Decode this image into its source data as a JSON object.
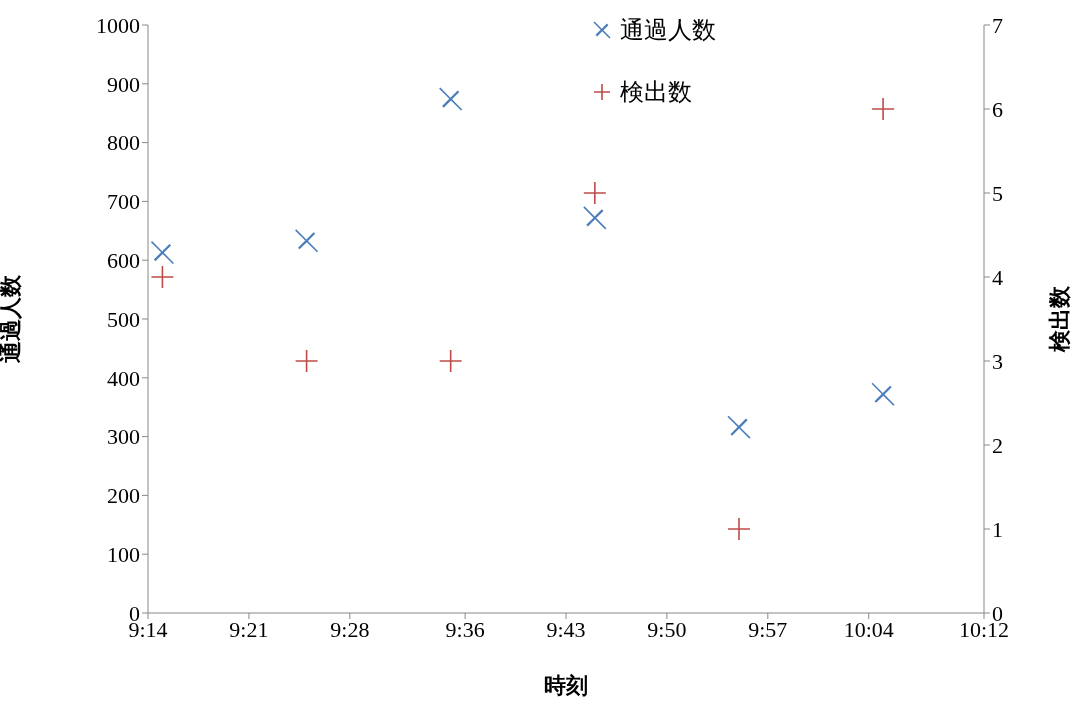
{
  "chart_data": {
    "type": "scatter",
    "xlabel": "時刻",
    "ylabel": "通過人数",
    "y2label": "検出数",
    "xlim": [
      9.2333,
      10.2
    ],
    "xticks": [
      {
        "value": 9.2333,
        "label": "9:14"
      },
      {
        "value": 9.35,
        "label": "9:21"
      },
      {
        "value": 9.4667,
        "label": "9:28"
      },
      {
        "value": 9.6,
        "label": "9:36"
      },
      {
        "value": 9.7167,
        "label": "9:43"
      },
      {
        "value": 9.8333,
        "label": "9:50"
      },
      {
        "value": 9.95,
        "label": "9:57"
      },
      {
        "value": 10.0667,
        "label": "10:04"
      },
      {
        "value": 10.2,
        "label": "10:12"
      }
    ],
    "ylim": [
      0,
      1000
    ],
    "yticks": [
      0,
      100,
      200,
      300,
      400,
      500,
      600,
      700,
      800,
      900,
      1000
    ],
    "y2lim": [
      0,
      7
    ],
    "y2ticks": [
      0,
      1,
      2,
      3,
      4,
      5,
      6,
      7
    ],
    "x": [
      9.25,
      9.4167,
      9.5833,
      9.75,
      9.9167,
      10.0833
    ],
    "series": [
      {
        "name": "通過人数",
        "color": "#4a7ebb",
        "marker": "x",
        "values": [
          613,
          633,
          874,
          672,
          316,
          372
        ]
      },
      {
        "name": "検出数",
        "color": "#be4b48",
        "marker": "cross",
        "axis": "y2",
        "values": [
          4,
          3,
          3,
          5,
          1,
          6
        ]
      }
    ],
    "grid": false,
    "legend": "top right"
  }
}
